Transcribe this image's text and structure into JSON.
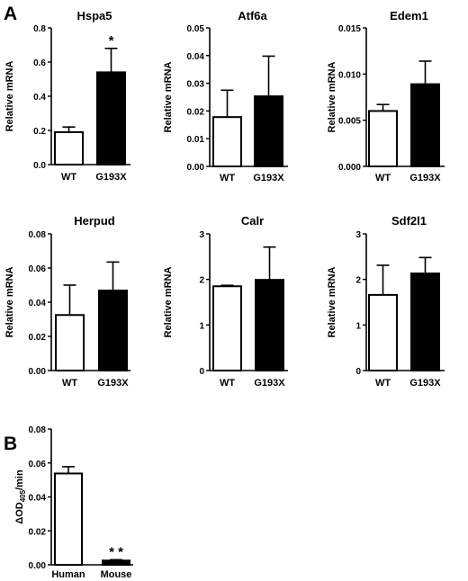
{
  "panels": [
    {
      "label": "A"
    },
    {
      "label": "B"
    }
  ],
  "chart_data": [
    {
      "type": "bar",
      "title": "Hspa5",
      "ylabel": "Relative mRNA",
      "categories": [
        "WT",
        "G193X"
      ],
      "values": [
        0.19,
        0.54
      ],
      "errors": [
        0.03,
        0.14
      ],
      "fills": [
        "#ffffff",
        "#000000"
      ],
      "ylim": [
        0,
        0.8
      ],
      "yticks": [
        "0.0",
        "0.2",
        "0.4",
        "0.6",
        "0.8"
      ],
      "annotations": [
        {
          "category": "G193X",
          "text": "*"
        }
      ]
    },
    {
      "type": "bar",
      "title": "Atf6a",
      "ylabel": "Relative mRNA",
      "categories": [
        "WT",
        "G193X"
      ],
      "values": [
        0.0178,
        0.0253
      ],
      "errors": [
        0.0097,
        0.0145
      ],
      "fills": [
        "#ffffff",
        "#000000"
      ],
      "ylim": [
        0,
        0.05
      ],
      "yticks": [
        "0.00",
        "0.01",
        "0.02",
        "0.03",
        "0.04",
        "0.05"
      ],
      "annotations": []
    },
    {
      "type": "bar",
      "title": "Edem1",
      "ylabel": "Relative mRNA",
      "categories": [
        "WT",
        "G193X"
      ],
      "values": [
        0.006,
        0.0089
      ],
      "errors": [
        0.0007,
        0.0025
      ],
      "fills": [
        "#ffffff",
        "#000000"
      ],
      "ylim": [
        0,
        0.015
      ],
      "yticks": [
        "0.000",
        "0.005",
        "0.010",
        "0.015"
      ],
      "annotations": []
    },
    {
      "type": "bar",
      "title": "Herpud",
      "ylabel": "Relative mRNA",
      "categories": [
        "WT",
        "G193X"
      ],
      "values": [
        0.0325,
        0.0468
      ],
      "errors": [
        0.0175,
        0.0167
      ],
      "fills": [
        "#ffffff",
        "#000000"
      ],
      "ylim": [
        0,
        0.08
      ],
      "yticks": [
        "0.00",
        "0.02",
        "0.04",
        "0.06",
        "0.08"
      ],
      "annotations": []
    },
    {
      "type": "bar",
      "title": "Calr",
      "ylabel": "Relative mRNA",
      "categories": [
        "WT",
        "G193X"
      ],
      "values": [
        1.85,
        1.99
      ],
      "errors": [
        0.02,
        0.72
      ],
      "fills": [
        "#ffffff",
        "#000000"
      ],
      "ylim": [
        0,
        3
      ],
      "yticks": [
        "0",
        "1",
        "2",
        "3"
      ],
      "annotations": []
    },
    {
      "type": "bar",
      "title": "Sdf2l1",
      "ylabel": "Relative mRNA",
      "categories": [
        "WT",
        "G193X"
      ],
      "values": [
        1.66,
        2.13
      ],
      "errors": [
        0.65,
        0.35
      ],
      "fills": [
        "#ffffff",
        "#000000"
      ],
      "ylim": [
        0,
        3
      ],
      "yticks": [
        "0",
        "1",
        "2",
        "3"
      ],
      "annotations": []
    },
    {
      "type": "bar",
      "title": "",
      "ylabel": "ΔOD405/min",
      "ylabel_parts": {
        "main": "ΔOD",
        "sub": "405",
        "tail": "/min"
      },
      "categories": [
        "Human",
        "Mouse"
      ],
      "values": [
        0.0538,
        0.0025
      ],
      "errors": [
        0.004,
        0.0005
      ],
      "fills": [
        "#ffffff",
        "#000000"
      ],
      "ylim": [
        0,
        0.08
      ],
      "yticks": [
        "0.00",
        "0.02",
        "0.04",
        "0.06",
        "0.08"
      ],
      "annotations": [
        {
          "category": "Mouse",
          "text": "* *"
        }
      ]
    }
  ]
}
